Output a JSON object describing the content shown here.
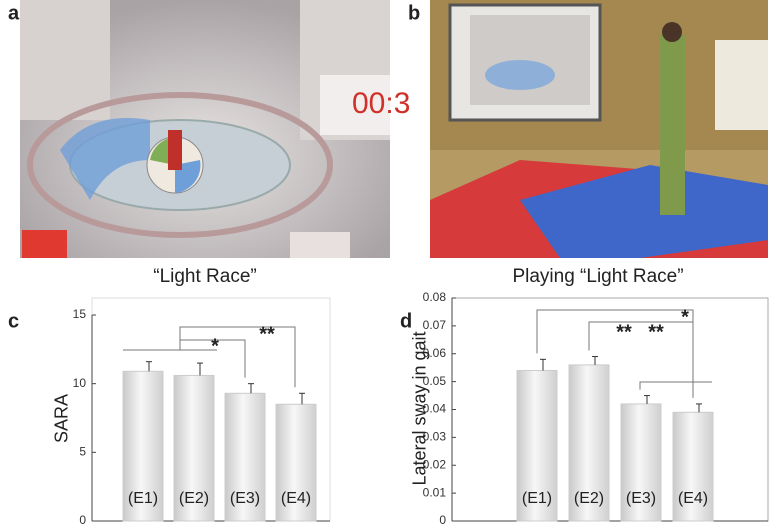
{
  "panels": {
    "labels": [
      "a",
      "b",
      "c",
      "d"
    ],
    "captions": [
      "“Light Race”",
      "Playing “Light Race”"
    ]
  },
  "chart_data": [
    {
      "type": "bar",
      "ylabel": "SARA",
      "categories": [
        "(E1)",
        "(E2)",
        "(E3)",
        "(E4)"
      ],
      "values": [
        10.9,
        10.6,
        9.3,
        8.5
      ],
      "errors": [
        0.7,
        0.9,
        0.7,
        0.8
      ],
      "ylim": [
        0,
        15
      ],
      "yticks": [
        0,
        5,
        10,
        15
      ],
      "annotations": [
        "*",
        "**"
      ],
      "color": "#e4e4e4"
    },
    {
      "type": "bar",
      "ylabel": "Lateral sway in gait",
      "categories": [
        "(E1)",
        "(E2)",
        "(E3)",
        "(E4)"
      ],
      "values": [
        0.054,
        0.056,
        0.042,
        0.039
      ],
      "errors": [
        0.004,
        0.003,
        0.003,
        0.003
      ],
      "ylim": [
        0,
        0.08
      ],
      "yticks": [
        0,
        0.01,
        0.02,
        0.03,
        0.04,
        0.05,
        0.06,
        0.07,
        0.08
      ],
      "annotations": [
        "**",
        "**",
        "*"
      ],
      "color": "#e4e4e4"
    }
  ]
}
